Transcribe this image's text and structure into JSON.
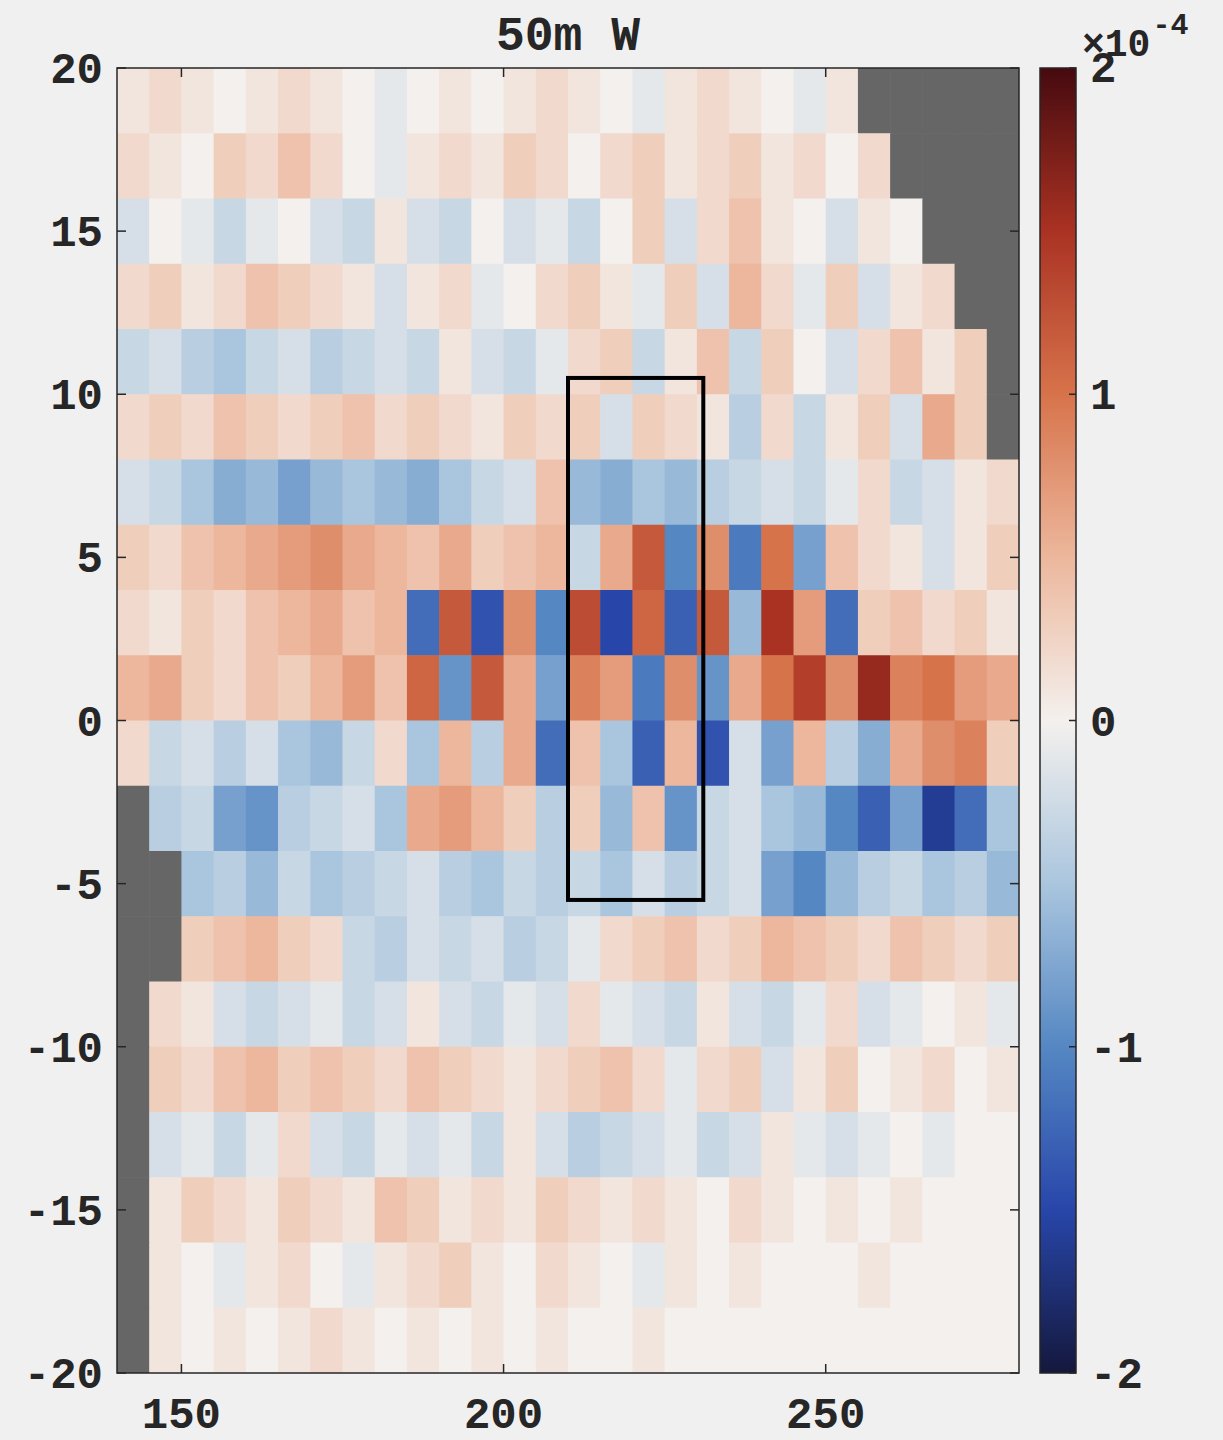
{
  "chart_data": {
    "type": "heatmap",
    "title": "50m W",
    "xlim": [
      140,
      280
    ],
    "ylim": [
      -20,
      20
    ],
    "xticks": [
      150,
      200,
      250
    ],
    "yticks": [
      -20,
      -15,
      -10,
      -5,
      0,
      5,
      10,
      15,
      20
    ],
    "grid": false,
    "x": [
      142.5,
      147.5,
      152.5,
      157.5,
      162.5,
      167.5,
      172.5,
      177.5,
      182.5,
      187.5,
      192.5,
      197.5,
      202.5,
      207.5,
      212.5,
      217.5,
      222.5,
      227.5,
      232.5,
      237.5,
      242.5,
      247.5,
      252.5,
      257.5,
      262.5,
      267.5,
      272.5,
      277.5
    ],
    "y": [
      19,
      17,
      15,
      13,
      11,
      9,
      7,
      5,
      3,
      1,
      -1,
      -3,
      -5,
      -7,
      -9,
      -11,
      -13,
      -15,
      -17,
      -19
    ],
    "cells": [
      [
        0.1,
        0.2,
        0.1,
        0,
        0.1,
        0.2,
        0.1,
        0,
        -0.1,
        0,
        0.1,
        0,
        0.1,
        0.2,
        0.1,
        0,
        -0.1,
        0.1,
        0.2,
        0.1,
        0,
        -0.1,
        0.1,
        null,
        null,
        null,
        null,
        null
      ],
      [
        0.2,
        0.1,
        0,
        0.3,
        0.2,
        0.4,
        0.2,
        0,
        -0.1,
        0.1,
        0.2,
        0.1,
        0.3,
        0.2,
        0,
        0.2,
        0.3,
        0.1,
        0.2,
        0.3,
        0.1,
        0.2,
        0,
        0.2,
        null,
        null,
        null,
        null
      ],
      [
        -0.2,
        0,
        -0.1,
        -0.3,
        -0.1,
        0,
        -0.2,
        -0.3,
        0.1,
        -0.2,
        -0.3,
        0,
        -0.2,
        -0.1,
        -0.3,
        0,
        0.3,
        -0.2,
        0.2,
        0.4,
        0.1,
        0,
        -0.2,
        0.1,
        0,
        null,
        null,
        null
      ],
      [
        0.2,
        0.3,
        0.1,
        0.2,
        0.4,
        0.3,
        0.2,
        0.1,
        -0.2,
        0.1,
        0.2,
        -0.1,
        0,
        0.2,
        0.3,
        0.1,
        -0.1,
        0.3,
        -0.2,
        0.5,
        0.2,
        -0.1,
        0.3,
        -0.2,
        0.1,
        0.2,
        null,
        null
      ],
      [
        -0.3,
        -0.2,
        -0.4,
        -0.5,
        -0.3,
        -0.2,
        -0.4,
        -0.3,
        -0.2,
        -0.3,
        0.1,
        -0.2,
        -0.3,
        -0.1,
        0.2,
        0.3,
        -0.3,
        0.1,
        0.4,
        -0.3,
        0.3,
        0,
        -0.2,
        0.2,
        0.4,
        0.1,
        0.3,
        null
      ],
      [
        0.2,
        0.3,
        0.2,
        0.4,
        0.3,
        0.2,
        0.3,
        0.4,
        0.2,
        0.3,
        0.2,
        0.1,
        0.3,
        0.2,
        0.3,
        -0.2,
        0.3,
        0.2,
        0.1,
        -0.4,
        0.2,
        -0.3,
        0.1,
        0.3,
        -0.2,
        0.6,
        0.3,
        null
      ],
      [
        -0.2,
        -0.3,
        -0.5,
        -0.7,
        -0.6,
        -0.8,
        -0.6,
        -0.5,
        -0.6,
        -0.7,
        -0.5,
        -0.3,
        -0.2,
        0.4,
        -0.6,
        -0.7,
        -0.5,
        -0.6,
        -0.4,
        -0.3,
        -0.2,
        -0.3,
        -0.1,
        0.2,
        -0.3,
        -0.2,
        0.1,
        0.2
      ],
      [
        0.3,
        0.2,
        0.4,
        0.5,
        0.6,
        0.7,
        0.8,
        0.6,
        0.5,
        0.4,
        0.6,
        0.3,
        0.4,
        0.5,
        -0.3,
        0.6,
        1.2,
        -1.0,
        0.8,
        -1.1,
        1.0,
        -0.8,
        0.4,
        0.2,
        0.1,
        -0.2,
        0.1,
        0.3
      ],
      [
        0.2,
        0.1,
        0.3,
        0.2,
        0.4,
        0.5,
        0.6,
        0.4,
        0.5,
        -1.2,
        1.2,
        -1.4,
        0.8,
        -1.0,
        1.3,
        -1.5,
        1.1,
        -1.3,
        1.2,
        -0.6,
        1.5,
        0.7,
        -1.2,
        0.3,
        0.4,
        0.2,
        0.3,
        0.1
      ],
      [
        0.5,
        0.6,
        0.3,
        0.2,
        0.4,
        0.3,
        0.5,
        0.7,
        0.4,
        1.1,
        -0.9,
        1.2,
        0.6,
        -0.8,
        0.9,
        0.7,
        -1.1,
        0.8,
        -0.9,
        0.6,
        1.0,
        1.4,
        0.8,
        1.6,
        0.9,
        1.0,
        0.7,
        0.6
      ],
      [
        0.2,
        -0.3,
        -0.2,
        -0.4,
        -0.2,
        -0.5,
        -0.6,
        -0.3,
        0.2,
        -0.5,
        0.5,
        -0.4,
        0.6,
        -1.2,
        0.4,
        -0.5,
        -1.3,
        0.5,
        -1.4,
        -0.2,
        -0.8,
        0.5,
        -0.4,
        -0.7,
        0.6,
        0.8,
        0.9,
        0.3
      ],
      [
        null,
        -0.4,
        -0.3,
        -0.8,
        -0.9,
        -0.4,
        -0.3,
        -0.2,
        -0.5,
        0.6,
        0.7,
        0.5,
        0.3,
        -0.4,
        0.3,
        -0.6,
        0.4,
        -0.9,
        -0.3,
        -0.2,
        -0.5,
        -0.6,
        -1.0,
        -1.3,
        -0.8,
        -1.6,
        -1.2,
        -0.5
      ],
      [
        null,
        null,
        -0.5,
        -0.4,
        -0.6,
        -0.3,
        -0.5,
        -0.4,
        -0.3,
        -0.2,
        -0.4,
        -0.5,
        -0.3,
        -0.4,
        -0.3,
        -0.5,
        -0.2,
        -0.4,
        -0.3,
        -0.2,
        -0.8,
        -1.0,
        -0.6,
        -0.4,
        -0.3,
        -0.5,
        -0.4,
        -0.6
      ],
      [
        null,
        null,
        0.3,
        0.4,
        0.5,
        0.3,
        0.2,
        -0.3,
        -0.4,
        -0.2,
        -0.3,
        -0.2,
        -0.4,
        -0.3,
        -0.1,
        0.2,
        0.3,
        0.4,
        0.2,
        0.3,
        0.5,
        0.4,
        0.3,
        0.2,
        0.4,
        0.3,
        0.2,
        0.3
      ],
      [
        null,
        0.2,
        0.1,
        -0.2,
        -0.3,
        -0.2,
        -0.1,
        -0.3,
        -0.2,
        0.1,
        -0.2,
        -0.3,
        -0.1,
        -0.2,
        0.2,
        -0.1,
        -0.2,
        -0.3,
        0.1,
        -0.2,
        -0.3,
        -0.1,
        0.2,
        -0.2,
        -0.1,
        0,
        0.1,
        -0.1
      ],
      [
        null,
        0.3,
        0.2,
        0.4,
        0.5,
        0.3,
        0.4,
        0.3,
        0.2,
        0.4,
        0.3,
        0.2,
        0.1,
        0.2,
        0.3,
        0.4,
        0.2,
        -0.1,
        0.2,
        0.3,
        -0.2,
        0.1,
        0.3,
        0,
        0.1,
        0.2,
        0,
        0.1
      ],
      [
        null,
        -0.2,
        -0.1,
        -0.3,
        -0.1,
        0.2,
        -0.2,
        -0.3,
        -0.1,
        -0.2,
        -0.1,
        -0.3,
        0.1,
        -0.2,
        -0.4,
        -0.3,
        -0.2,
        -0.1,
        -0.3,
        -0.2,
        0.1,
        -0.1,
        -0.2,
        -0.1,
        0,
        -0.1,
        0,
        0
      ],
      [
        null,
        0.1,
        0.3,
        0.2,
        0.1,
        0.3,
        0.2,
        0.1,
        0.4,
        0.3,
        0.1,
        0.2,
        0.1,
        0.3,
        0.2,
        0.1,
        0.2,
        0.1,
        0,
        0.2,
        0.1,
        0,
        0.1,
        0,
        0.1,
        0,
        0,
        0
      ],
      [
        null,
        0.1,
        0,
        -0.1,
        0.1,
        0.2,
        0,
        -0.1,
        0.1,
        0.2,
        0.3,
        0.1,
        0,
        0.2,
        0.1,
        0,
        -0.1,
        0.1,
        0,
        0.1,
        0,
        0,
        0,
        0.1,
        0,
        0,
        0,
        0
      ],
      [
        null,
        0.1,
        0,
        0.1,
        0,
        0.1,
        0.2,
        0.1,
        0,
        0.1,
        0,
        0.1,
        0,
        0.1,
        0,
        0,
        0.1,
        0,
        0,
        0,
        0,
        0,
        0,
        0,
        0,
        0,
        0,
        0
      ]
    ],
    "colorbar_range": [
      -2,
      2
    ],
    "colorbar_ticks": [
      -2,
      -1,
      0,
      1,
      2
    ],
    "colorbar_label": {
      "base": "×10",
      "exponent": "-4"
    },
    "annotations": [
      {
        "type": "box",
        "x": [
          210,
          231
        ],
        "y": [
          -5.5,
          10.5
        ]
      }
    ]
  }
}
